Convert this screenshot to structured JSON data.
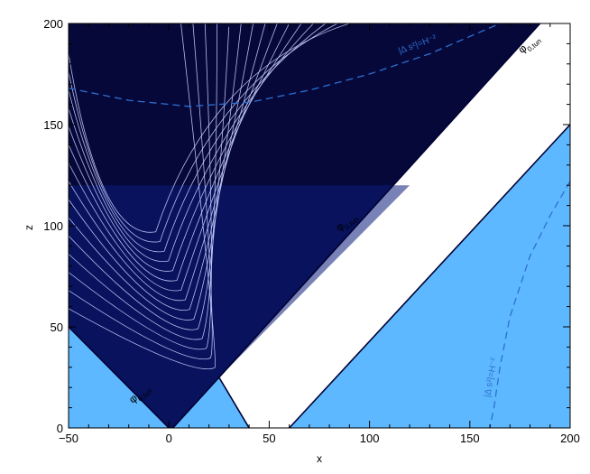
{
  "chart_data": {
    "type": "heatmap",
    "title": "",
    "xlabel": "x",
    "ylabel": "z",
    "xlim": [
      -50,
      200
    ],
    "ylim": [
      0,
      200
    ],
    "x_ticks": [
      -50,
      0,
      50,
      100,
      150,
      200
    ],
    "y_ticks": [
      0,
      50,
      100,
      150,
      200
    ],
    "grid": false,
    "colors": {
      "dark_region": "#06083a",
      "mid_region": "#0b1b7a",
      "light_region": "#5db8ff",
      "gap_region": "#ffffff",
      "contour_line": "#c9d2ff",
      "boundary_line": "#000033",
      "annotation": "#2f6fd0"
    },
    "regions": [
      {
        "name": "upper-left-dark",
        "fill": "dark",
        "polygon": [
          [
            -50,
            50
          ],
          [
            0,
            0
          ],
          [
            2,
            0
          ],
          [
            25,
            25
          ],
          [
            185,
            200
          ],
          [
            -50,
            200
          ]
        ]
      },
      {
        "name": "lower-left-light",
        "fill": "light",
        "polygon": [
          [
            -50,
            0
          ],
          [
            -50,
            50
          ],
          [
            0,
            0
          ]
        ]
      },
      {
        "name": "lower-valley-light",
        "fill": "light",
        "polygon": [
          [
            2,
            0
          ],
          [
            25,
            25
          ],
          [
            40,
            0
          ]
        ]
      },
      {
        "name": "lower-right-light",
        "fill": "light",
        "polygon": [
          [
            60,
            0
          ],
          [
            200,
            150
          ],
          [
            200,
            0
          ]
        ]
      }
    ],
    "contours": {
      "label": "φ",
      "label_subscript": "0,tun",
      "label_positions": [
        [
          -18,
          12
        ],
        [
          85,
          97
        ],
        [
          176,
          185
        ]
      ]
    },
    "annotation_curves": [
      {
        "label": "|Δ s²|=H⁻²",
        "style": "dashed",
        "points": [
          [
            -50,
            168
          ],
          [
            -20,
            162
          ],
          [
            10,
            159
          ],
          [
            40,
            161
          ],
          [
            70,
            167
          ],
          [
            100,
            175
          ],
          [
            130,
            185
          ],
          [
            165,
            200
          ]
        ]
      },
      {
        "label": "|Δ s²|=H⁻²",
        "style": "dashed",
        "points": [
          [
            200,
            122
          ],
          [
            190,
            105
          ],
          [
            180,
            85
          ],
          [
            170,
            55
          ],
          [
            165,
            30
          ],
          [
            162,
            10
          ],
          [
            160,
            0
          ]
        ]
      }
    ],
    "annotation_label_positions": [
      [
        115,
        185
      ],
      [
        160,
        15
      ]
    ]
  }
}
